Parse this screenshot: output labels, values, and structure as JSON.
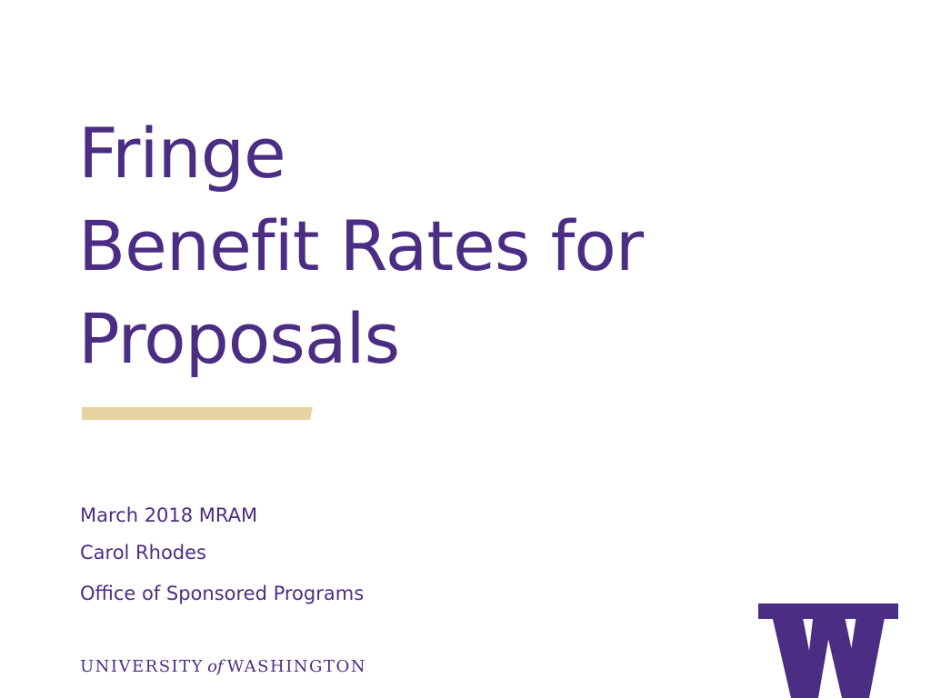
{
  "slide": {
    "title_lines": [
      "Fringe",
      "Benefit Rates for",
      "Proposals"
    ],
    "date_event": "March 2018 MRAM",
    "presenter": "Carol Rhodes",
    "office": "Office of Sponsored Programs",
    "wordmark": {
      "part1": "UNIVERSITY",
      "part2": "of",
      "part3": "WASHINGTON"
    },
    "logo_icon": "uw-w-logo",
    "colors": {
      "purple": "#4b2e83",
      "gold": "#e8d3a2"
    }
  }
}
